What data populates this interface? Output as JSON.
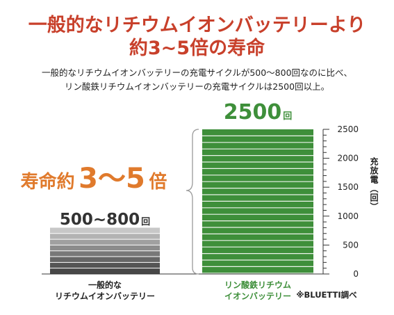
{
  "headline": {
    "line1": "一般的なリチウムイオンバッテリーより",
    "line2": "約3~5倍の寿命"
  },
  "subtitle": {
    "line1": "一般的なリチウムイオンバッテリーの充電サイクルが500～800回なのに比べ、",
    "line2": "リン酸鉄リチウムイオンバッテリーの充電サイクルは2500回以上。"
  },
  "callout": {
    "prefix": "寿命約",
    "number": "3～5",
    "suffix": "倍"
  },
  "colors": {
    "title_red": "#c8402b",
    "callout_orange": "#e07a2c",
    "lfp_green": "#3e8f3a",
    "li_gray": "#555555"
  },
  "chart_data": {
    "type": "bar",
    "categories": [
      "一般的な\nリチウムイオンバッテリー",
      "リン酸鉄リチウム\nイオンバッテリー"
    ],
    "values": [
      800,
      2500
    ],
    "value_labels": [
      {
        "number": "500~800",
        "unit": "回"
      },
      {
        "number": "2500",
        "unit": "回"
      }
    ],
    "ylabel": "充放電（回）",
    "ylim": [
      0,
      2500
    ],
    "yticks": [
      0,
      500,
      1000,
      1500,
      2000,
      2500
    ],
    "legend": "none",
    "grid": false,
    "source_note": "※BLUETTI調べ"
  }
}
